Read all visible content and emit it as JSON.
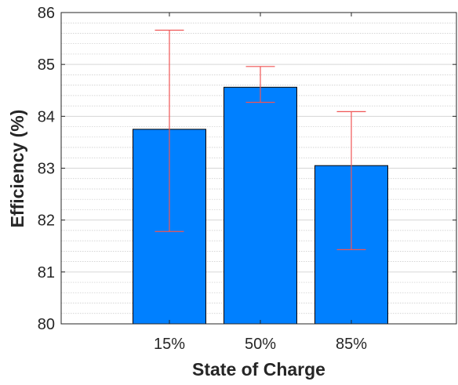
{
  "chart_data": {
    "type": "bar",
    "title": "",
    "xlabel": "State of Charge",
    "ylabel": "Efficiency (%)",
    "categories": [
      "15%",
      "50%",
      "85%"
    ],
    "values": [
      83.75,
      84.56,
      83.05
    ],
    "error_low": [
      81.78,
      84.27,
      81.43
    ],
    "error_high": [
      85.66,
      84.96,
      84.09
    ],
    "ylim": [
      80,
      86
    ],
    "yticks": [
      80,
      81,
      82,
      83,
      84,
      85,
      86
    ],
    "y_minor_step": 0.2,
    "grid": true,
    "bar_color": "#0080ff",
    "error_color": "#ef5555"
  }
}
